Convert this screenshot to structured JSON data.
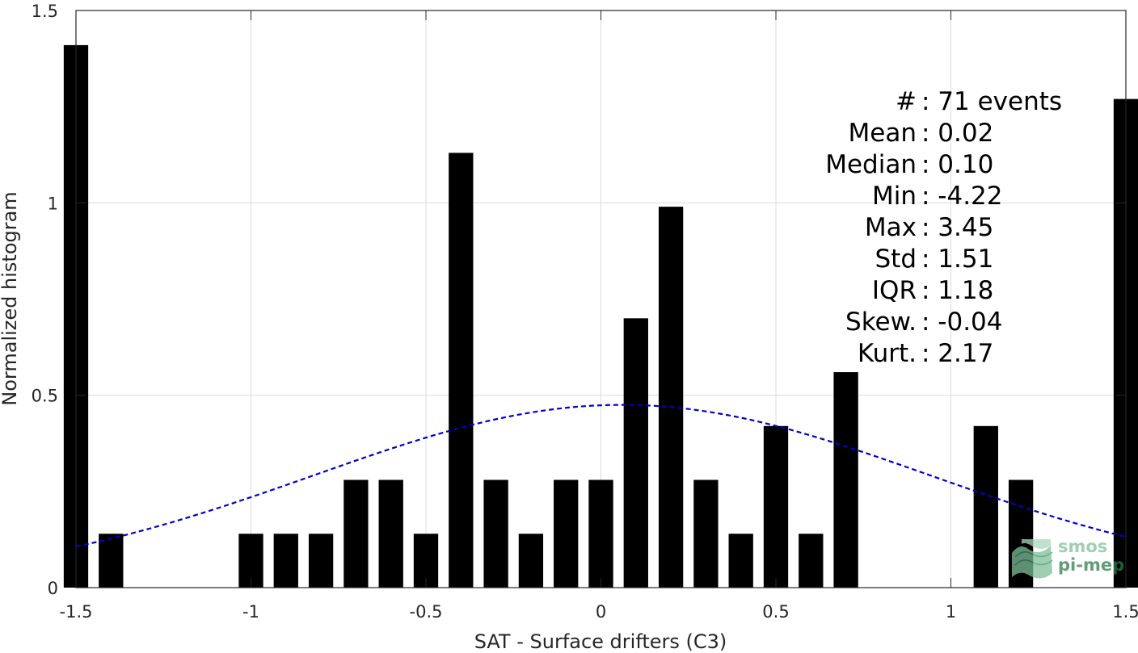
{
  "chart_data": {
    "type": "bar",
    "xlabel": "SAT - Surface drifters (C3)",
    "ylabel": "Normalized histogram",
    "xlim": [
      -1.5,
      1.5
    ],
    "ylim": [
      0,
      1.5
    ],
    "grid": true,
    "xticks": [
      -1.5,
      -1,
      -0.5,
      0,
      0.5,
      1,
      1.5
    ],
    "xtick_labels": [
      "-1.5",
      "-1",
      "-0.5",
      "0",
      "0.5",
      "1",
      "1.5"
    ],
    "yticks": [
      0,
      0.5,
      1,
      1.5
    ],
    "ytick_labels": [
      "0",
      "0.5",
      "1",
      "1.5"
    ],
    "bar_color": "#000000",
    "bar_width": 0.07,
    "bars": {
      "x": [
        -1.5,
        -1.4,
        -1.0,
        -0.9,
        -0.8,
        -0.7,
        -0.6,
        -0.5,
        -0.4,
        -0.3,
        -0.2,
        -0.1,
        0.0,
        0.1,
        0.2,
        0.3,
        0.4,
        0.5,
        0.6,
        0.7,
        1.1,
        1.2,
        1.5
      ],
      "y": [
        1.41,
        0.14,
        0.14,
        0.14,
        0.14,
        0.28,
        0.28,
        0.14,
        1.13,
        0.28,
        0.14,
        0.28,
        0.28,
        0.7,
        0.99,
        0.28,
        0.14,
        0.42,
        0.14,
        0.56,
        0.42,
        0.28,
        1.27
      ]
    },
    "fit_curve": {
      "type": "gaussian",
      "color": "#0000cc",
      "style": "dashed",
      "x_range": [
        -1.5,
        1.5
      ],
      "peak_x": 0.06,
      "peak_y": 0.475,
      "baseline": 0.01,
      "sigma": 0.88
    },
    "stats_lines": [
      "#  : 71 events",
      "Mean : 0.02",
      "Median : 0.10",
      "Min : -4.22",
      "Max : 3.45",
      "Std : 1.51",
      "IQR : 1.18",
      "Skew. : -0.04",
      "Kurt. : 2.17"
    ]
  },
  "logo": {
    "line1": "smos",
    "line2": "pi-mep",
    "color": "#2e7d4a"
  }
}
